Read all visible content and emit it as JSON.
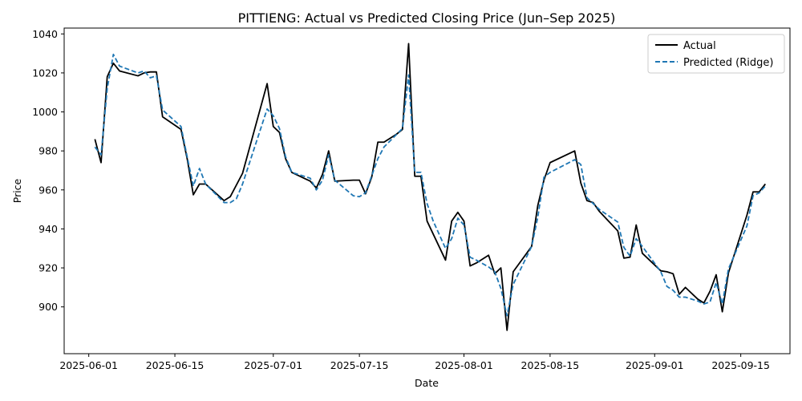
{
  "chart_data": {
    "type": "line",
    "title": "PITTIENG: Actual vs Predicted Closing Price (Jun–Sep 2025)",
    "xlabel": "Date",
    "ylabel": "Price",
    "xlim": [
      "2025-05-28",
      "2025-09-23"
    ],
    "ylim": [
      876,
      1043
    ],
    "x_ticks": [
      "2025-06-01",
      "2025-06-15",
      "2025-07-01",
      "2025-07-15",
      "2025-08-01",
      "2025-08-15",
      "2025-09-01",
      "2025-09-15"
    ],
    "y_ticks": [
      900,
      920,
      940,
      960,
      980,
      1000,
      1020,
      1040
    ],
    "grid": false,
    "legend_position": "top-right",
    "series": [
      {
        "name": "Actual",
        "color": "#000000",
        "style": "solid",
        "points": [
          [
            "2025-06-02",
            986
          ],
          [
            "2025-06-03",
            974
          ],
          [
            "2025-06-04",
            1018
          ],
          [
            "2025-06-05",
            1025
          ],
          [
            "2025-06-06",
            1021
          ],
          [
            "2025-06-09",
            1018.5
          ],
          [
            "2025-06-10",
            1020
          ],
          [
            "2025-06-11",
            1020.5
          ],
          [
            "2025-06-12",
            1020.5
          ],
          [
            "2025-06-13",
            997.5
          ],
          [
            "2025-06-16",
            991
          ],
          [
            "2025-06-17",
            976
          ],
          [
            "2025-06-18",
            957.5
          ],
          [
            "2025-06-19",
            963
          ],
          [
            "2025-06-20",
            963
          ],
          [
            "2025-06-23",
            954.5
          ],
          [
            "2025-06-24",
            956.5
          ],
          [
            "2025-06-26",
            968.5
          ],
          [
            "2025-06-30",
            1014.5
          ],
          [
            "2025-07-01",
            992.5
          ],
          [
            "2025-07-02",
            989.5
          ],
          [
            "2025-07-03",
            976
          ],
          [
            "2025-07-04",
            969
          ],
          [
            "2025-07-07",
            964.5
          ],
          [
            "2025-07-08",
            961
          ],
          [
            "2025-07-09",
            968
          ],
          [
            "2025-07-10",
            980
          ],
          [
            "2025-07-11",
            964.5
          ],
          [
            "2025-07-14",
            965
          ],
          [
            "2025-07-15",
            965
          ],
          [
            "2025-07-16",
            958
          ],
          [
            "2025-07-17",
            966.5
          ],
          [
            "2025-07-18",
            984.5
          ],
          [
            "2025-07-19",
            984.5
          ],
          [
            "2025-07-21",
            988.5
          ],
          [
            "2025-07-22",
            991
          ],
          [
            "2025-07-23",
            1035
          ],
          [
            "2025-07-24",
            967
          ],
          [
            "2025-07-25",
            967
          ],
          [
            "2025-07-26",
            944
          ],
          [
            "2025-07-29",
            924
          ],
          [
            "2025-07-30",
            944
          ],
          [
            "2025-07-31",
            948.5
          ],
          [
            "2025-08-01",
            944
          ],
          [
            "2025-08-02",
            921
          ],
          [
            "2025-08-03",
            922.5
          ],
          [
            "2025-08-05",
            926.5
          ],
          [
            "2025-08-06",
            917
          ],
          [
            "2025-08-07",
            920
          ],
          [
            "2025-08-08",
            888
          ],
          [
            "2025-08-09",
            918
          ],
          [
            "2025-08-12",
            931
          ],
          [
            "2025-08-13",
            952
          ],
          [
            "2025-08-14",
            965
          ],
          [
            "2025-08-15",
            974
          ],
          [
            "2025-08-19",
            980
          ],
          [
            "2025-08-20",
            963.5
          ],
          [
            "2025-08-21",
            954.5
          ],
          [
            "2025-08-22",
            953.5
          ],
          [
            "2025-08-23",
            949
          ],
          [
            "2025-08-26",
            939
          ],
          [
            "2025-08-27",
            925
          ],
          [
            "2025-08-28",
            925.5
          ],
          [
            "2025-08-29",
            942
          ],
          [
            "2025-08-30",
            927.5
          ],
          [
            "2025-09-02",
            918.5
          ],
          [
            "2025-09-03",
            918
          ],
          [
            "2025-09-04",
            917
          ],
          [
            "2025-09-05",
            906.5
          ],
          [
            "2025-09-06",
            910
          ],
          [
            "2025-09-08",
            904
          ],
          [
            "2025-09-09",
            902
          ],
          [
            "2025-09-10",
            908
          ],
          [
            "2025-09-11",
            916.5
          ],
          [
            "2025-09-12",
            897.5
          ],
          [
            "2025-09-13",
            917.5
          ],
          [
            "2025-09-16",
            947
          ],
          [
            "2025-09-17",
            959
          ],
          [
            "2025-09-18",
            959
          ],
          [
            "2025-09-19",
            963
          ]
        ]
      },
      {
        "name": "Predicted (Ridge)",
        "color": "#1f77b4",
        "style": "dashed",
        "points": [
          [
            "2025-06-02",
            982
          ],
          [
            "2025-06-03",
            978
          ],
          [
            "2025-06-04",
            1012
          ],
          [
            "2025-06-05",
            1029.5
          ],
          [
            "2025-06-06",
            1023.5
          ],
          [
            "2025-06-09",
            1020
          ],
          [
            "2025-06-10",
            1021
          ],
          [
            "2025-06-11",
            1017.5
          ],
          [
            "2025-06-12",
            1018.5
          ],
          [
            "2025-06-13",
            1001
          ],
          [
            "2025-06-16",
            992.5
          ],
          [
            "2025-06-17",
            977
          ],
          [
            "2025-06-18",
            962
          ],
          [
            "2025-06-19",
            971
          ],
          [
            "2025-06-20",
            963
          ],
          [
            "2025-06-23",
            953.5
          ],
          [
            "2025-06-24",
            953.5
          ],
          [
            "2025-06-25",
            955.5
          ],
          [
            "2025-06-26",
            963
          ],
          [
            "2025-06-30",
            1001.5
          ],
          [
            "2025-07-01",
            998
          ],
          [
            "2025-07-02",
            991.5
          ],
          [
            "2025-07-03",
            977
          ],
          [
            "2025-07-04",
            969
          ],
          [
            "2025-07-07",
            966
          ],
          [
            "2025-07-08",
            960
          ],
          [
            "2025-07-09",
            965
          ],
          [
            "2025-07-10",
            978
          ],
          [
            "2025-07-11",
            965
          ],
          [
            "2025-07-14",
            957
          ],
          [
            "2025-07-15",
            956.5
          ],
          [
            "2025-07-16",
            958.5
          ],
          [
            "2025-07-18",
            976
          ],
          [
            "2025-07-19",
            982
          ],
          [
            "2025-07-22",
            991.5
          ],
          [
            "2025-07-23",
            1019
          ],
          [
            "2025-07-24",
            969
          ],
          [
            "2025-07-25",
            969
          ],
          [
            "2025-07-26",
            953
          ],
          [
            "2025-07-27",
            944
          ],
          [
            "2025-07-29",
            930
          ],
          [
            "2025-07-30",
            935
          ],
          [
            "2025-07-31",
            945.5
          ],
          [
            "2025-08-01",
            942
          ],
          [
            "2025-08-02",
            925.5
          ],
          [
            "2025-08-03",
            924
          ],
          [
            "2025-08-05",
            920.5
          ],
          [
            "2025-08-06",
            918
          ],
          [
            "2025-08-07",
            909.5
          ],
          [
            "2025-08-08",
            895.5
          ],
          [
            "2025-08-09",
            911.5
          ],
          [
            "2025-08-12",
            931
          ],
          [
            "2025-08-13",
            946
          ],
          [
            "2025-08-14",
            966.5
          ],
          [
            "2025-08-15",
            969
          ],
          [
            "2025-08-19",
            975.5
          ],
          [
            "2025-08-20",
            973
          ],
          [
            "2025-08-21",
            956
          ],
          [
            "2025-08-22",
            953
          ],
          [
            "2025-08-23",
            950
          ],
          [
            "2025-08-26",
            943.5
          ],
          [
            "2025-08-27",
            930.5
          ],
          [
            "2025-08-28",
            926
          ],
          [
            "2025-08-29",
            935
          ],
          [
            "2025-08-30",
            931
          ],
          [
            "2025-09-02",
            918
          ],
          [
            "2025-09-03",
            910.5
          ],
          [
            "2025-09-04",
            908.5
          ],
          [
            "2025-09-05",
            905
          ],
          [
            "2025-09-06",
            905
          ],
          [
            "2025-09-08",
            903
          ],
          [
            "2025-09-09",
            901.5
          ],
          [
            "2025-09-10",
            902.5
          ],
          [
            "2025-09-11",
            912.5
          ],
          [
            "2025-09-12",
            901.5
          ],
          [
            "2025-09-13",
            919.5
          ],
          [
            "2025-09-16",
            941.5
          ],
          [
            "2025-09-17",
            957
          ],
          [
            "2025-09-18",
            958.5
          ],
          [
            "2025-09-19",
            962
          ]
        ]
      }
    ]
  }
}
